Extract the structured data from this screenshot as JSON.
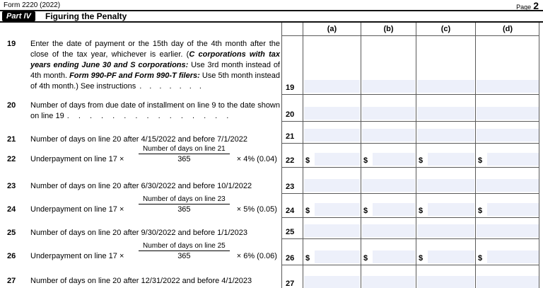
{
  "header": {
    "form_id": "Form 2220 (2022)",
    "page_word": "Page",
    "page_number": "2"
  },
  "part": {
    "badge": "Part IV",
    "title": "Figuring the Penalty"
  },
  "table": {
    "column_headers": [
      "(a)",
      "(b)",
      "(c)",
      "(d)"
    ],
    "dollar_symbol": "$",
    "field_fill_color": "#edf0fa",
    "rows": [
      {
        "num": "19",
        "dollar": false
      },
      {
        "num": "20",
        "dollar": false
      },
      {
        "num": "21",
        "dollar": false
      },
      {
        "num": "22",
        "dollar": true
      },
      {
        "num": "23",
        "dollar": false
      },
      {
        "num": "24",
        "dollar": true
      },
      {
        "num": "25",
        "dollar": false
      },
      {
        "num": "26",
        "dollar": true
      },
      {
        "num": "27",
        "dollar": false
      }
    ]
  },
  "lines": {
    "l19": {
      "num": "19",
      "segments": [
        {
          "text": "Enter the date of payment or the 15th day of the 4th month after the close of the tax year, whichever is earlier. (",
          "emph": false
        },
        {
          "text": "C corporations with tax years ending June 30 and S corporations:",
          "emph": true
        },
        {
          "text": " Use 3rd month instead of 4th month. ",
          "emph": false
        },
        {
          "text": "Form 990-PF and Form 990-T filers:",
          "emph": true
        },
        {
          "text": " Use 5th month instead of 4th month.) See instructions",
          "emph": false
        }
      ],
      "dots": ". . . . . . ."
    },
    "l20": {
      "num": "20",
      "text": "Number of days from due date of installment on line 9 to the date shown on line 19",
      "dots": ". . . . . . . . . . . . . . ."
    },
    "l21": {
      "num": "21",
      "text": "Number of days on line 20 after 4/15/2022 and before 7/1/2022"
    },
    "l22": {
      "num": "22",
      "prefix": "Underpayment on line 17  ×",
      "numerator": "Number of days on line 21",
      "denominator": "365",
      "suffix": "× 4% (0.04)"
    },
    "l23": {
      "num": "23",
      "text": "Number of days on line 20 after 6/30/2022 and before 10/1/2022"
    },
    "l24": {
      "num": "24",
      "prefix": "Underpayment on line 17  ×",
      "numerator": "Number of days on line 23",
      "denominator": "365",
      "suffix": "× 5% (0.05)"
    },
    "l25": {
      "num": "25",
      "text": "Number of days on line 20 after 9/30/2022 and before 1/1/2023"
    },
    "l26": {
      "num": "26",
      "prefix": "Underpayment on line 17  ×",
      "numerator": "Number of days on line 25",
      "denominator": "365",
      "suffix": "× 6% (0.06)"
    },
    "l27": {
      "num": "27",
      "text": "Number of days on line 20 after 12/31/2022 and before 4/1/2023"
    }
  }
}
